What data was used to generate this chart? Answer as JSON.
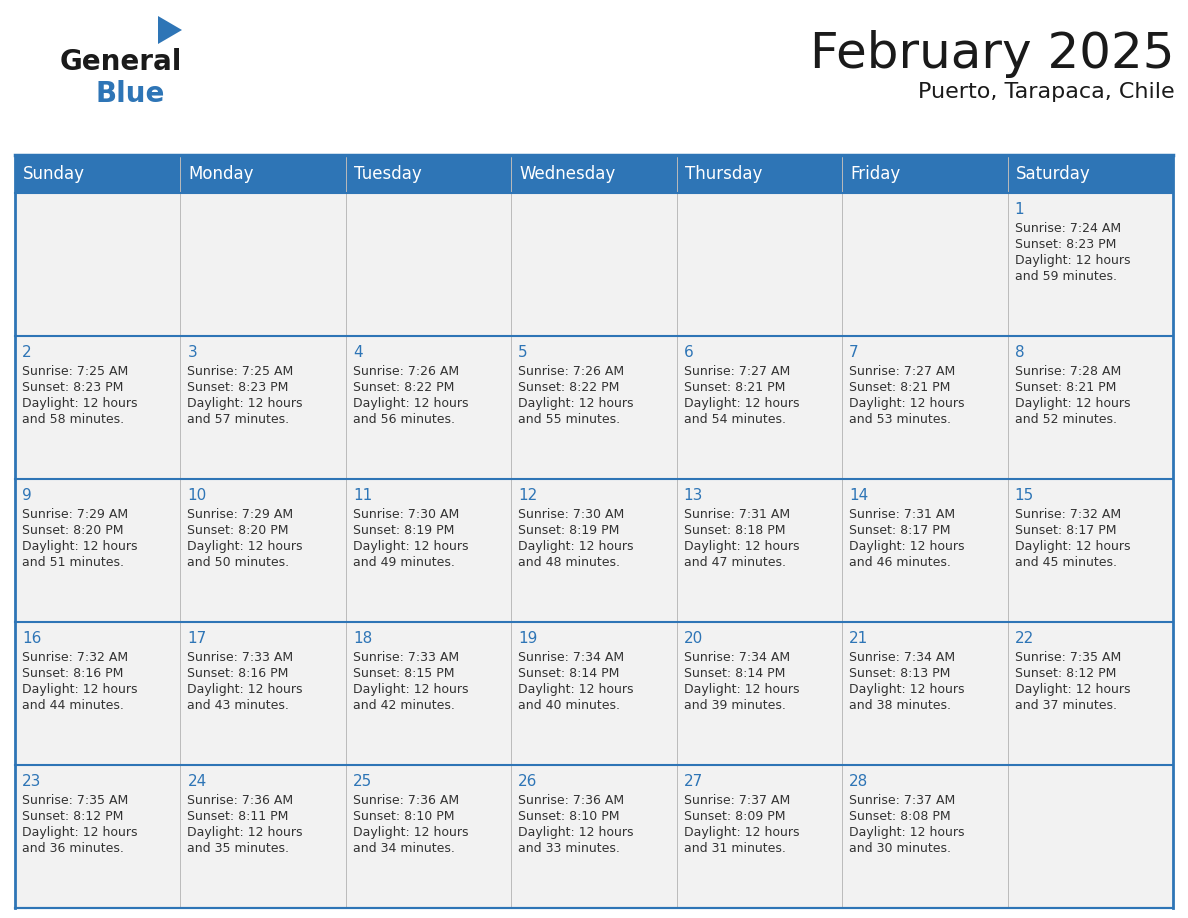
{
  "title": "February 2025",
  "subtitle": "Puerto, Tarapaca, Chile",
  "header_bg": "#2E75B6",
  "header_text_color": "#FFFFFF",
  "cell_bg": "#F2F2F2",
  "day_number_color": "#2E75B6",
  "cell_text_color": "#333333",
  "border_color": "#2E75B6",
  "days_of_week": [
    "Sunday",
    "Monday",
    "Tuesday",
    "Wednesday",
    "Thursday",
    "Friday",
    "Saturday"
  ],
  "weeks": [
    [
      {
        "day": null,
        "sunrise": null,
        "sunset": null,
        "daylight_hours": null,
        "daylight_minutes": null
      },
      {
        "day": null,
        "sunrise": null,
        "sunset": null,
        "daylight_hours": null,
        "daylight_minutes": null
      },
      {
        "day": null,
        "sunrise": null,
        "sunset": null,
        "daylight_hours": null,
        "daylight_minutes": null
      },
      {
        "day": null,
        "sunrise": null,
        "sunset": null,
        "daylight_hours": null,
        "daylight_minutes": null
      },
      {
        "day": null,
        "sunrise": null,
        "sunset": null,
        "daylight_hours": null,
        "daylight_minutes": null
      },
      {
        "day": null,
        "sunrise": null,
        "sunset": null,
        "daylight_hours": null,
        "daylight_minutes": null
      },
      {
        "day": 1,
        "sunrise": "7:24 AM",
        "sunset": "8:23 PM",
        "daylight_hours": 12,
        "daylight_minutes": 59
      }
    ],
    [
      {
        "day": 2,
        "sunrise": "7:25 AM",
        "sunset": "8:23 PM",
        "daylight_hours": 12,
        "daylight_minutes": 58
      },
      {
        "day": 3,
        "sunrise": "7:25 AM",
        "sunset": "8:23 PM",
        "daylight_hours": 12,
        "daylight_minutes": 57
      },
      {
        "day": 4,
        "sunrise": "7:26 AM",
        "sunset": "8:22 PM",
        "daylight_hours": 12,
        "daylight_minutes": 56
      },
      {
        "day": 5,
        "sunrise": "7:26 AM",
        "sunset": "8:22 PM",
        "daylight_hours": 12,
        "daylight_minutes": 55
      },
      {
        "day": 6,
        "sunrise": "7:27 AM",
        "sunset": "8:21 PM",
        "daylight_hours": 12,
        "daylight_minutes": 54
      },
      {
        "day": 7,
        "sunrise": "7:27 AM",
        "sunset": "8:21 PM",
        "daylight_hours": 12,
        "daylight_minutes": 53
      },
      {
        "day": 8,
        "sunrise": "7:28 AM",
        "sunset": "8:21 PM",
        "daylight_hours": 12,
        "daylight_minutes": 52
      }
    ],
    [
      {
        "day": 9,
        "sunrise": "7:29 AM",
        "sunset": "8:20 PM",
        "daylight_hours": 12,
        "daylight_minutes": 51
      },
      {
        "day": 10,
        "sunrise": "7:29 AM",
        "sunset": "8:20 PM",
        "daylight_hours": 12,
        "daylight_minutes": 50
      },
      {
        "day": 11,
        "sunrise": "7:30 AM",
        "sunset": "8:19 PM",
        "daylight_hours": 12,
        "daylight_minutes": 49
      },
      {
        "day": 12,
        "sunrise": "7:30 AM",
        "sunset": "8:19 PM",
        "daylight_hours": 12,
        "daylight_minutes": 48
      },
      {
        "day": 13,
        "sunrise": "7:31 AM",
        "sunset": "8:18 PM",
        "daylight_hours": 12,
        "daylight_minutes": 47
      },
      {
        "day": 14,
        "sunrise": "7:31 AM",
        "sunset": "8:17 PM",
        "daylight_hours": 12,
        "daylight_minutes": 46
      },
      {
        "day": 15,
        "sunrise": "7:32 AM",
        "sunset": "8:17 PM",
        "daylight_hours": 12,
        "daylight_minutes": 45
      }
    ],
    [
      {
        "day": 16,
        "sunrise": "7:32 AM",
        "sunset": "8:16 PM",
        "daylight_hours": 12,
        "daylight_minutes": 44
      },
      {
        "day": 17,
        "sunrise": "7:33 AM",
        "sunset": "8:16 PM",
        "daylight_hours": 12,
        "daylight_minutes": 43
      },
      {
        "day": 18,
        "sunrise": "7:33 AM",
        "sunset": "8:15 PM",
        "daylight_hours": 12,
        "daylight_minutes": 42
      },
      {
        "day": 19,
        "sunrise": "7:34 AM",
        "sunset": "8:14 PM",
        "daylight_hours": 12,
        "daylight_minutes": 40
      },
      {
        "day": 20,
        "sunrise": "7:34 AM",
        "sunset": "8:14 PM",
        "daylight_hours": 12,
        "daylight_minutes": 39
      },
      {
        "day": 21,
        "sunrise": "7:34 AM",
        "sunset": "8:13 PM",
        "daylight_hours": 12,
        "daylight_minutes": 38
      },
      {
        "day": 22,
        "sunrise": "7:35 AM",
        "sunset": "8:12 PM",
        "daylight_hours": 12,
        "daylight_minutes": 37
      }
    ],
    [
      {
        "day": 23,
        "sunrise": "7:35 AM",
        "sunset": "8:12 PM",
        "daylight_hours": 12,
        "daylight_minutes": 36
      },
      {
        "day": 24,
        "sunrise": "7:36 AM",
        "sunset": "8:11 PM",
        "daylight_hours": 12,
        "daylight_minutes": 35
      },
      {
        "day": 25,
        "sunrise": "7:36 AM",
        "sunset": "8:10 PM",
        "daylight_hours": 12,
        "daylight_minutes": 34
      },
      {
        "day": 26,
        "sunrise": "7:36 AM",
        "sunset": "8:10 PM",
        "daylight_hours": 12,
        "daylight_minutes": 33
      },
      {
        "day": 27,
        "sunrise": "7:37 AM",
        "sunset": "8:09 PM",
        "daylight_hours": 12,
        "daylight_minutes": 31
      },
      {
        "day": 28,
        "sunrise": "7:37 AM",
        "sunset": "8:08 PM",
        "daylight_hours": 12,
        "daylight_minutes": 30
      },
      {
        "day": null,
        "sunrise": null,
        "sunset": null,
        "daylight_hours": null,
        "daylight_minutes": null
      }
    ]
  ],
  "logo_general_color": "#1a1a1a",
  "logo_blue_color": "#2E75B6",
  "logo_triangle_color": "#2E75B6",
  "title_fontsize": 36,
  "subtitle_fontsize": 16,
  "header_fontsize": 12,
  "day_num_fontsize": 11,
  "cell_fontsize": 9
}
